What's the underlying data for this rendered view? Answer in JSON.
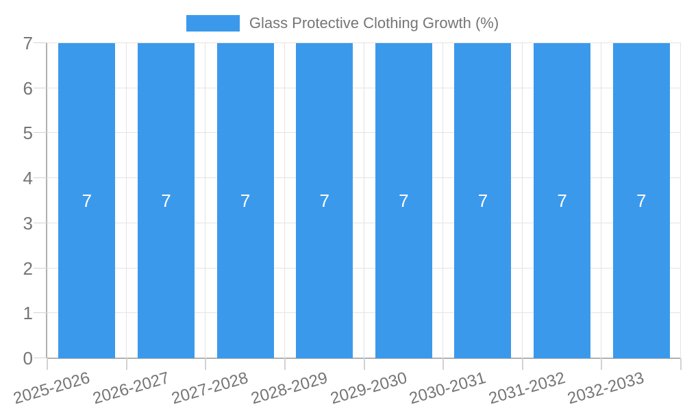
{
  "legend": {
    "label": "Glass Protective Clothing Growth (%)"
  },
  "chart_data": {
    "type": "bar",
    "title": "Glass Protective Clothing Growth (%)",
    "categories": [
      "2025-2026",
      "2026-2027",
      "2027-2028",
      "2028-2029",
      "2029-2030",
      "2030-2031",
      "2031-2032",
      "2032-2033"
    ],
    "values": [
      7,
      7,
      7,
      7,
      7,
      7,
      7,
      7
    ],
    "bar_value_labels": [
      "7",
      "7",
      "7",
      "7",
      "7",
      "7",
      "7",
      "7"
    ],
    "xlabel": "",
    "ylabel": "",
    "ylim": [
      0,
      7
    ],
    "yticks": [
      0,
      1,
      2,
      3,
      4,
      5,
      6,
      7
    ],
    "grid": true,
    "legend_position": "top",
    "colors": {
      "bar": "#3B99EC",
      "text": "#757575",
      "grid": "#e3e3e3",
      "axis": "#b0b0b0",
      "tick": "#d2d2d2",
      "value_label": "#ffffff",
      "background": "#ffffff"
    }
  }
}
